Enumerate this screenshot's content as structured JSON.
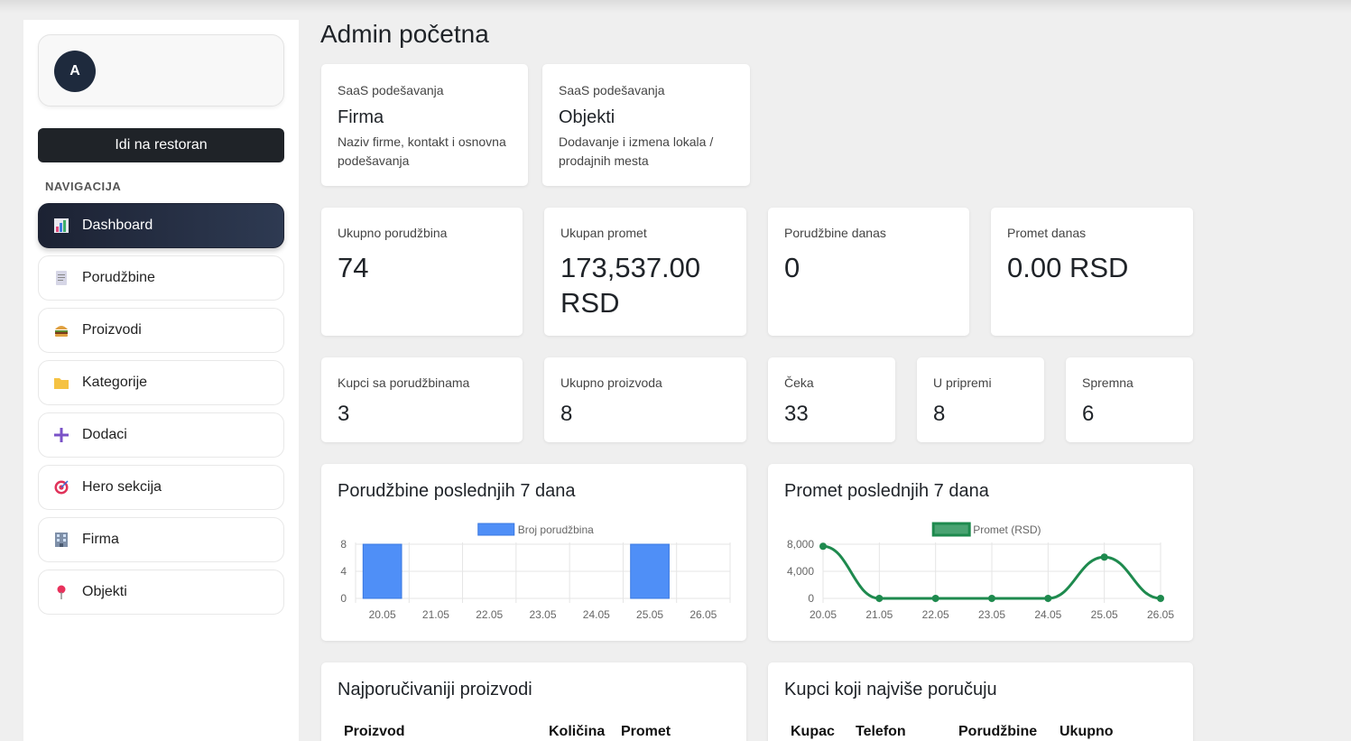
{
  "sidebar": {
    "avatar_letter": "A",
    "goto_button": "Idi na restoran",
    "nav_heading": "NAVIGACIJA",
    "items": [
      {
        "label": "Dashboard",
        "icon": "bar-chart-icon",
        "active": true
      },
      {
        "label": "Porudžbine",
        "icon": "receipt-icon"
      },
      {
        "label": "Proizvodi",
        "icon": "burger-icon"
      },
      {
        "label": "Kategorije",
        "icon": "folder-icon"
      },
      {
        "label": "Dodaci",
        "icon": "plus-icon"
      },
      {
        "label": "Hero sekcija",
        "icon": "target-icon"
      },
      {
        "label": "Firma",
        "icon": "building-icon"
      },
      {
        "label": "Objekti",
        "icon": "pin-icon"
      }
    ]
  },
  "main": {
    "title": "Admin početna",
    "saas_cards": [
      {
        "eyebrow": "SaaS podešavanja",
        "title": "Firma",
        "desc": "Naziv firme, kontakt i osnovna podešavanja"
      },
      {
        "eyebrow": "SaaS podešavanja",
        "title": "Objekti",
        "desc": "Dodavanje i izmena lokala / prodajnih mesta"
      }
    ],
    "stats_row1": [
      {
        "label": "Ukupno porudžbina",
        "value": "74"
      },
      {
        "label": "Ukupan promet",
        "value": "173,537.00 RSD"
      },
      {
        "label": "Porudžbine danas",
        "value": "0"
      },
      {
        "label": "Promet danas",
        "value": "0.00 RSD"
      }
    ],
    "stats_row2": [
      {
        "label": "Kupci sa porudžbinama",
        "value": "3"
      },
      {
        "label": "Ukupno proizvoda",
        "value": "8"
      },
      {
        "label": "Čeka",
        "value": "33"
      },
      {
        "label": "U pripremi",
        "value": "8"
      },
      {
        "label": "Spremna",
        "value": "6"
      }
    ],
    "top_products": {
      "title": "Najporučivaniji proizvodi",
      "columns": [
        "Proizvod",
        "Količina",
        "Promet"
      ]
    },
    "top_customers": {
      "title": "Kupci koji najviše poručuju",
      "columns": [
        "Kupac",
        "Telefon",
        "Porudžbine",
        "Ukupno"
      ]
    }
  },
  "chart_data": [
    {
      "type": "bar",
      "title": "Porudžbine poslednjih 7 dana",
      "categories": [
        "20.05",
        "21.05",
        "22.05",
        "23.05",
        "24.05",
        "25.05",
        "26.05"
      ],
      "series": [
        {
          "name": "Broj porudžbina",
          "values": [
            8,
            0,
            0,
            0,
            0,
            8,
            0
          ]
        }
      ],
      "yticks": [
        "0",
        "4",
        "8"
      ],
      "ylim": [
        0,
        8
      ],
      "legend": "top-center",
      "grid": true,
      "color": "#4f8ff7"
    },
    {
      "type": "line",
      "title": "Promet poslednjih 7 dana",
      "categories": [
        "20.05",
        "21.05",
        "22.05",
        "23.05",
        "24.05",
        "25.05",
        "26.05"
      ],
      "series": [
        {
          "name": "Promet (RSD)",
          "values": [
            7700,
            0,
            0,
            0,
            0,
            6100,
            0
          ]
        }
      ],
      "yticks": [
        "0",
        "4,000",
        "8,000"
      ],
      "ylim": [
        0,
        8000
      ],
      "legend": "top-center",
      "grid": true,
      "color": "#1e8a4e"
    }
  ]
}
